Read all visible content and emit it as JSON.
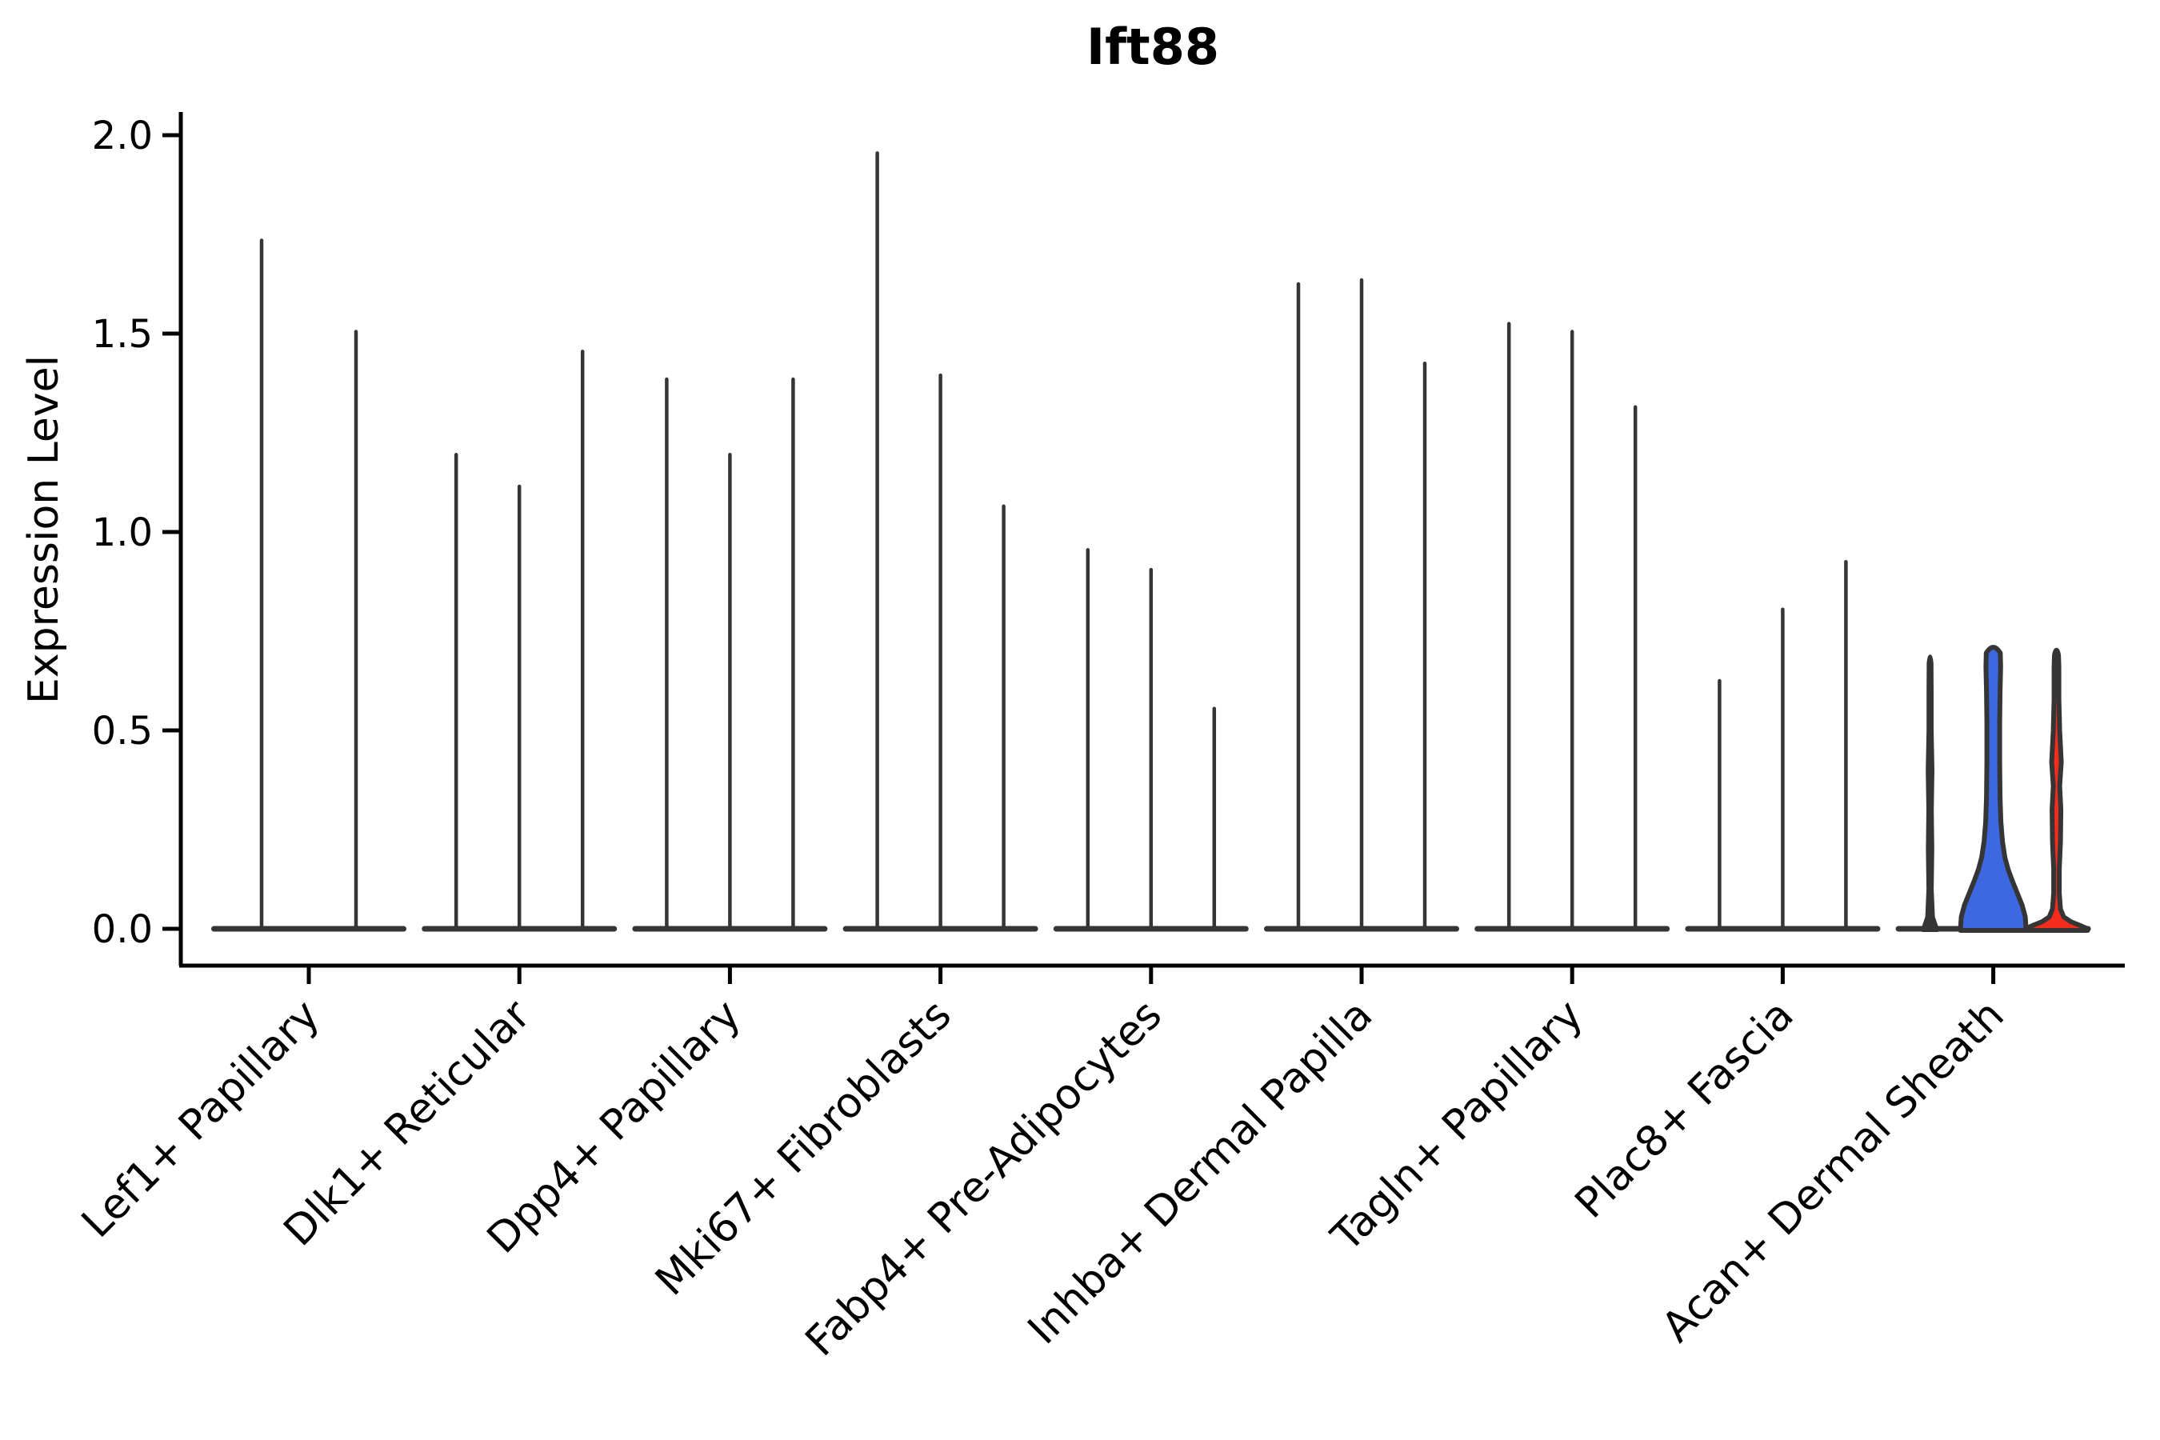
{
  "chart_data": {
    "type": "violin",
    "title": "Ift88",
    "ylabel": "Expression Level",
    "xlabel": "",
    "ylim": [
      0,
      2.0
    ],
    "yticks": [
      "0.0",
      "0.5",
      "1.0",
      "1.5",
      "2.0"
    ],
    "ytick_values": [
      0,
      0.5,
      1.0,
      1.5,
      2.0
    ],
    "grid": "off",
    "legend": "none",
    "stroke_color": "#353535",
    "axis_color": "#000000",
    "highlight_colors": {
      "blue": "#3E68DF",
      "red": "#F52B1E"
    },
    "categories": [
      "Lef1+ Papillary",
      "Dlk1+ Reticular",
      "Dpp4+ Papillary",
      "Mki67+ Fibroblasts",
      "Fabp4+ Pre-Adipocytes",
      "Inhba+ Dermal Papilla",
      "Tagln+ Papillary",
      "Plac8+ Fascia",
      "Acan+ Dermal Sheath"
    ],
    "groups": [
      {
        "label": "Lef1+ Papillary",
        "violins": [
          {
            "max": 1.74,
            "shape": "spike"
          },
          {
            "max": 1.51,
            "shape": "spike"
          }
        ]
      },
      {
        "label": "Dlk1+ Reticular",
        "violins": [
          {
            "max": 1.2,
            "shape": "spike"
          },
          {
            "max": 1.12,
            "shape": "spike"
          },
          {
            "max": 1.46,
            "shape": "spike"
          }
        ]
      },
      {
        "label": "Dpp4+ Papillary",
        "violins": [
          {
            "max": 1.39,
            "shape": "spike"
          },
          {
            "max": 1.2,
            "shape": "spike"
          },
          {
            "max": 1.39,
            "shape": "spike"
          }
        ]
      },
      {
        "label": "Mki67+ Fibroblasts",
        "violins": [
          {
            "max": 1.96,
            "shape": "spike"
          },
          {
            "max": 1.4,
            "shape": "spike"
          },
          {
            "max": 1.07,
            "shape": "spike"
          }
        ]
      },
      {
        "label": "Fabp4+ Pre-Adipocytes",
        "violins": [
          {
            "max": 0.96,
            "shape": "spike"
          },
          {
            "max": 0.91,
            "shape": "spike"
          },
          {
            "max": 0.56,
            "shape": "spike"
          }
        ]
      },
      {
        "label": "Inhba+ Dermal Papilla",
        "violins": [
          {
            "max": 1.63,
            "shape": "spike"
          },
          {
            "max": 1.64,
            "shape": "spike"
          },
          {
            "max": 1.43,
            "shape": "spike"
          }
        ]
      },
      {
        "label": "Tagln+ Papillary",
        "violins": [
          {
            "max": 1.53,
            "shape": "spike"
          },
          {
            "max": 1.51,
            "shape": "spike"
          },
          {
            "max": 1.32,
            "shape": "spike"
          }
        ]
      },
      {
        "label": "Plac8+ Fascia",
        "violins": [
          {
            "max": 0.63,
            "shape": "spike"
          },
          {
            "max": 0.81,
            "shape": "spike"
          },
          {
            "max": 0.93,
            "shape": "spike"
          }
        ]
      },
      {
        "label": "Acan+ Dermal Sheath",
        "violins": [
          {
            "max": 0.69,
            "shape": "profile",
            "fill": "#353535",
            "profile": [
              [
                0,
                9
              ],
              [
                0.03,
                4
              ],
              [
                0.1,
                2.5
              ],
              [
                0.2,
                3.2
              ],
              [
                0.3,
                2.6
              ],
              [
                0.4,
                3.4
              ],
              [
                0.5,
                2.4
              ],
              [
                0.6,
                2.4
              ],
              [
                0.67,
                2.2
              ]
            ]
          },
          {
            "max": 0.71,
            "shape": "profile",
            "fill": "#3E68DF",
            "profile": [
              [
                0,
                41
              ],
              [
                0.03,
                40
              ],
              [
                0.06,
                36
              ],
              [
                0.09,
                30
              ],
              [
                0.12,
                24
              ],
              [
                0.15,
                18.5
              ],
              [
                0.18,
                14.5
              ],
              [
                0.22,
                11.5
              ],
              [
                0.27,
                9.5
              ],
              [
                0.33,
                8.5
              ],
              [
                0.42,
                8
              ],
              [
                0.52,
                8
              ],
              [
                0.6,
                8.5
              ],
              [
                0.66,
                9.2
              ],
              [
                0.695,
                8.8
              ]
            ]
          },
          {
            "max": 0.7,
            "shape": "profile",
            "fill": "#F52B1E",
            "profile": [
              [
                0,
                39
              ],
              [
                0.008,
                30
              ],
              [
                0.018,
                18
              ],
              [
                0.03,
                9
              ],
              [
                0.05,
                5
              ],
              [
                0.09,
                3.5
              ],
              [
                0.15,
                3.5
              ],
              [
                0.22,
                5
              ],
              [
                0.3,
                5.5
              ],
              [
                0.36,
                4
              ],
              [
                0.42,
                6
              ],
              [
                0.5,
                4
              ],
              [
                0.58,
                3
              ],
              [
                0.66,
                3
              ],
              [
                0.69,
                2.5
              ]
            ]
          }
        ]
      }
    ]
  }
}
